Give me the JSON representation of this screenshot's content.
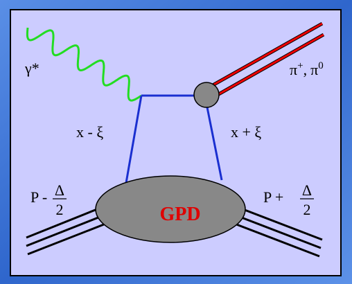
{
  "photon": "γ*",
  "meson": {
    "name1": "π",
    "charge1": "+",
    "separator": ",",
    "name2": "π",
    "charge2": "0"
  },
  "left_parton": "x - ξ",
  "right_parton": "x + ξ",
  "incoming_proton": {
    "symbol": "P -",
    "numerator": "Δ",
    "denominator": "2"
  },
  "outgoing_proton": {
    "symbol": "P +",
    "numerator": "Δ",
    "denominator": "2"
  },
  "blob": "GPD"
}
